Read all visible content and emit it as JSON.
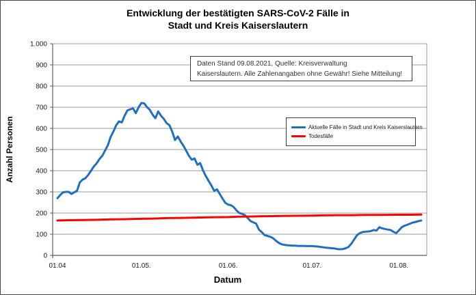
{
  "title": {
    "line1": "Entwicklung der bestätigten SARS-CoV-2 Fälle in",
    "line2": "Stadt und Kreis Kaiserslautern"
  },
  "annotation": {
    "line1": "Daten Stand 09.08.2021, Quelle: Kreisverwaltung",
    "line2": "Kaiserslautern. Alle Zahlenangaben ohne Gewähr! Siehe Mitteilung!"
  },
  "axes": {
    "y_title": "Anzahl Personen",
    "x_title": "Datum",
    "y_ticks": [
      {
        "v": 0,
        "label": "0"
      },
      {
        "v": 100,
        "label": "100"
      },
      {
        "v": 200,
        "label": "200"
      },
      {
        "v": 300,
        "label": "300"
      },
      {
        "v": 400,
        "label": "400"
      },
      {
        "v": 500,
        "label": "500"
      },
      {
        "v": 600,
        "label": "600"
      },
      {
        "v": 700,
        "label": "700"
      },
      {
        "v": 800,
        "label": "800"
      },
      {
        "v": 900,
        "label": "900"
      },
      {
        "v": 1000,
        "label": "1.000"
      }
    ],
    "x_ticks": [
      {
        "date": "01.04",
        "label": "01.04"
      },
      {
        "date": "01.05",
        "label": "01.05."
      },
      {
        "date": "01.06",
        "label": "01.06."
      },
      {
        "date": "01.07",
        "label": "01.07."
      },
      {
        "date": "01.08",
        "label": "01.08."
      }
    ]
  },
  "legend": {
    "items": [
      {
        "label": "Aktuelle Fälle in Stadt und Kreis Kaiserslautern",
        "color": "#1F6EC0"
      },
      {
        "label": "Todesfälle",
        "color": "#FF0000"
      }
    ]
  },
  "colors": {
    "cases_line": "#1F6EC0",
    "deaths_line": "#FF0000",
    "gridline": "#9a9a9a",
    "axis": "#5a5a5a",
    "plot_border": "#9a9a9a"
  },
  "chart_data": {
    "type": "line",
    "title": "Entwicklung der bestätigten SARS-CoV-2 Fälle in Stadt und Kreis Kaiserslautern",
    "xlabel": "Datum",
    "ylabel": "Anzahl Personen",
    "ylim": [
      0,
      1000
    ],
    "grid": "horizontal",
    "legend_position": "center-right (boxed, inside plot)",
    "x_range": [
      "01.04.2021",
      "09.08.2021"
    ],
    "x_tick_labels": [
      "01.04",
      "01.05.",
      "01.06.",
      "01.07.",
      "01.08."
    ],
    "series": [
      {
        "name": "Aktuelle Fälle in Stadt und Kreis Kaiserslautern",
        "color": "#1F6EC0",
        "points": [
          [
            "01.04",
            270
          ],
          [
            "02.04",
            285
          ],
          [
            "03.04",
            298
          ],
          [
            "04.04",
            300
          ],
          [
            "05.04",
            300
          ],
          [
            "06.04",
            290
          ],
          [
            "07.04",
            298
          ],
          [
            "08.04",
            305
          ],
          [
            "09.04",
            345
          ],
          [
            "10.04",
            358
          ],
          [
            "11.04",
            365
          ],
          [
            "12.04",
            380
          ],
          [
            "13.04",
            400
          ],
          [
            "14.04",
            420
          ],
          [
            "15.04",
            435
          ],
          [
            "16.04",
            455
          ],
          [
            "17.04",
            470
          ],
          [
            "18.04",
            495
          ],
          [
            "19.04",
            520
          ],
          [
            "20.04",
            560
          ],
          [
            "21.04",
            585
          ],
          [
            "22.04",
            615
          ],
          [
            "23.04",
            633
          ],
          [
            "24.04",
            628
          ],
          [
            "25.04",
            660
          ],
          [
            "26.04",
            685
          ],
          [
            "27.04",
            690
          ],
          [
            "28.04",
            695
          ],
          [
            "29.04",
            672
          ],
          [
            "30.04",
            700
          ],
          [
            "01.05",
            720
          ],
          [
            "02.05",
            718
          ],
          [
            "03.05",
            700
          ],
          [
            "04.05",
            688
          ],
          [
            "05.05",
            665
          ],
          [
            "06.05",
            648
          ],
          [
            "07.05",
            680
          ],
          [
            "08.05",
            660
          ],
          [
            "09.05",
            645
          ],
          [
            "10.05",
            625
          ],
          [
            "11.05",
            615
          ],
          [
            "12.05",
            585
          ],
          [
            "13.05",
            545
          ],
          [
            "14.05",
            562
          ],
          [
            "15.05",
            538
          ],
          [
            "16.05",
            518
          ],
          [
            "17.05",
            495
          ],
          [
            "18.05",
            470
          ],
          [
            "19.05",
            452
          ],
          [
            "20.05",
            458
          ],
          [
            "21.05",
            428
          ],
          [
            "22.05",
            436
          ],
          [
            "23.05",
            402
          ],
          [
            "24.05",
            375
          ],
          [
            "25.05",
            352
          ],
          [
            "26.05",
            330
          ],
          [
            "27.05",
            305
          ],
          [
            "28.05",
            312
          ],
          [
            "29.05",
            290
          ],
          [
            "30.05",
            268
          ],
          [
            "31.05",
            248
          ],
          [
            "01.06",
            240
          ],
          [
            "02.06",
            237
          ],
          [
            "03.06",
            228
          ],
          [
            "04.06",
            212
          ],
          [
            "05.06",
            200
          ],
          [
            "06.06",
            196
          ],
          [
            "07.06",
            190
          ],
          [
            "08.06",
            176
          ],
          [
            "09.06",
            162
          ],
          [
            "10.06",
            156
          ],
          [
            "11.06",
            150
          ],
          [
            "12.06",
            122
          ],
          [
            "13.06",
            110
          ],
          [
            "14.06",
            96
          ],
          [
            "15.06",
            92
          ],
          [
            "16.06",
            88
          ],
          [
            "17.06",
            82
          ],
          [
            "18.06",
            70
          ],
          [
            "19.06",
            60
          ],
          [
            "20.06",
            53
          ],
          [
            "21.06",
            50
          ],
          [
            "22.06",
            48
          ],
          [
            "23.06",
            47
          ],
          [
            "24.06",
            46
          ],
          [
            "25.06",
            46
          ],
          [
            "26.06",
            45
          ],
          [
            "27.06",
            45
          ],
          [
            "28.06",
            45
          ],
          [
            "29.06",
            44
          ],
          [
            "30.06",
            44
          ],
          [
            "01.07",
            44
          ],
          [
            "02.07",
            43
          ],
          [
            "03.07",
            42
          ],
          [
            "04.07",
            40
          ],
          [
            "05.07",
            38
          ],
          [
            "06.07",
            36
          ],
          [
            "07.07",
            35
          ],
          [
            "08.07",
            34
          ],
          [
            "09.07",
            33
          ],
          [
            "10.07",
            30
          ],
          [
            "11.07",
            29
          ],
          [
            "12.07",
            30
          ],
          [
            "13.07",
            34
          ],
          [
            "14.07",
            40
          ],
          [
            "15.07",
            55
          ],
          [
            "16.07",
            75
          ],
          [
            "17.07",
            95
          ],
          [
            "18.07",
            105
          ],
          [
            "19.07",
            110
          ],
          [
            "20.07",
            112
          ],
          [
            "21.07",
            113
          ],
          [
            "22.07",
            115
          ],
          [
            "23.07",
            120
          ],
          [
            "24.07",
            117
          ],
          [
            "25.07",
            133
          ],
          [
            "26.07",
            128
          ],
          [
            "27.07",
            125
          ],
          [
            "28.07",
            122
          ],
          [
            "29.07",
            120
          ],
          [
            "30.07",
            112
          ],
          [
            "31.07",
            105
          ],
          [
            "01.08",
            118
          ],
          [
            "02.08",
            133
          ],
          [
            "03.08",
            140
          ],
          [
            "04.08",
            145
          ],
          [
            "05.08",
            150
          ],
          [
            "06.08",
            155
          ],
          [
            "07.08",
            158
          ],
          [
            "08.08",
            162
          ],
          [
            "09.08",
            165
          ]
        ]
      },
      {
        "name": "Todesfälle",
        "color": "#FF0000",
        "points": [
          [
            "01.04",
            165
          ],
          [
            "05.04",
            166
          ],
          [
            "10.04",
            167
          ],
          [
            "15.04",
            168
          ],
          [
            "20.04",
            170
          ],
          [
            "25.04",
            171
          ],
          [
            "01.05",
            173
          ],
          [
            "05.05",
            174
          ],
          [
            "10.05",
            176
          ],
          [
            "15.05",
            177
          ],
          [
            "20.05",
            178
          ],
          [
            "25.05",
            180
          ],
          [
            "01.06",
            181
          ],
          [
            "05.06",
            183
          ],
          [
            "10.06",
            184
          ],
          [
            "15.06",
            185
          ],
          [
            "20.06",
            186
          ],
          [
            "25.06",
            187
          ],
          [
            "01.07",
            188
          ],
          [
            "05.07",
            189
          ],
          [
            "10.07",
            190
          ],
          [
            "15.07",
            190
          ],
          [
            "20.07",
            191
          ],
          [
            "25.07",
            191
          ],
          [
            "01.08",
            192
          ],
          [
            "05.08",
            192
          ],
          [
            "09.08",
            193
          ]
        ]
      }
    ]
  }
}
